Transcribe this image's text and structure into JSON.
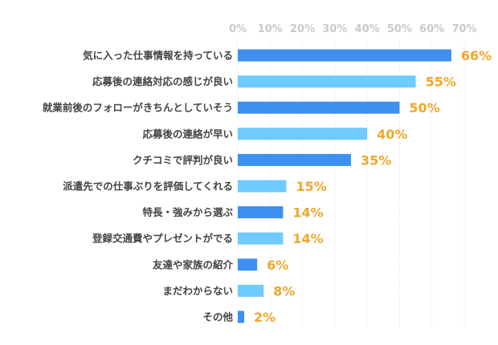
{
  "chart_data": {
    "type": "bar",
    "orientation": "horizontal",
    "title": "",
    "xlabel": "",
    "ylabel": "",
    "xlim": [
      0,
      70
    ],
    "ticks": [
      0,
      10,
      20,
      30,
      40,
      50,
      60,
      70
    ],
    "tick_labels": [
      "0%",
      "10%",
      "20%",
      "30%",
      "40%",
      "50%",
      "60%",
      "70%"
    ],
    "grid": true,
    "categories": [
      "気に入った仕事情報を持っている",
      "応募後の連絡対応の感じが良い",
      "就業前後のフォローがきちんとしていそう",
      "応募後の連絡が早い",
      "クチコミで評判が良い",
      "派遣先での仕事ぶりを評価してくれる",
      "特長・強みから選ぶ",
      "登録交通費やプレゼントがでる",
      "友達や家族の紹介",
      "まだわからない",
      "その他"
    ],
    "values": [
      66,
      55,
      50,
      40,
      35,
      15,
      14,
      14,
      6,
      8,
      2
    ],
    "value_labels": [
      "66%",
      "55%",
      "50%",
      "40%",
      "35%",
      "15%",
      "14%",
      "14%",
      "6%",
      "8%",
      "2%"
    ],
    "colors": {
      "dark_bar": "#3d8ff0",
      "light_bar": "#6ecbff",
      "value_text": "#f0a62a",
      "label_text": "#444444",
      "tick_text": "#c9c9c9",
      "grid": "#e6e6e6"
    }
  }
}
